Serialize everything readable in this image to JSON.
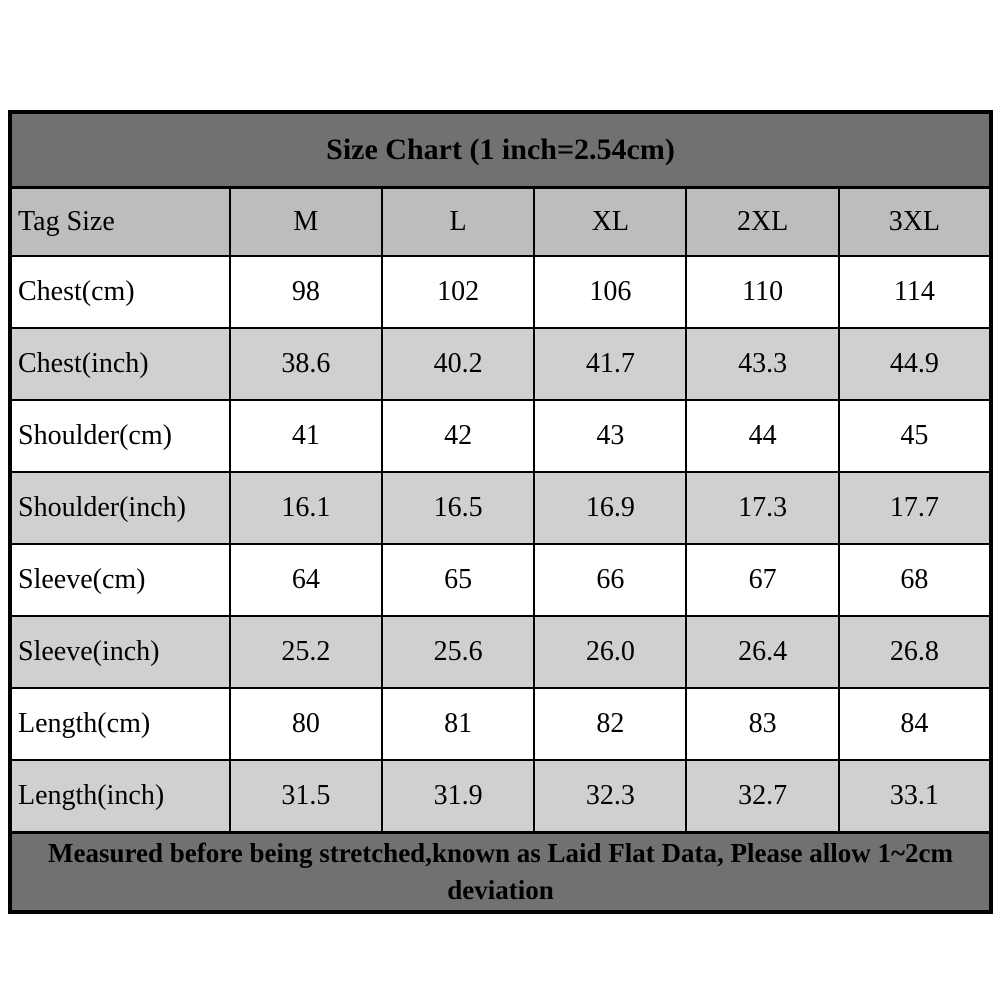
{
  "table": {
    "title": "Size Chart (1 inch=2.54cm)",
    "columns": [
      "Tag Size",
      "M",
      "L",
      "XL",
      "2XL",
      "3XL"
    ],
    "rows": [
      {
        "label": "Chest(cm)",
        "values": [
          "98",
          "102",
          "106",
          "110",
          "114"
        ]
      },
      {
        "label": "Chest(inch)",
        "values": [
          "38.6",
          "40.2",
          "41.7",
          "43.3",
          "44.9"
        ]
      },
      {
        "label": "Shoulder(cm)",
        "values": [
          "41",
          "42",
          "43",
          "44",
          "45"
        ]
      },
      {
        "label": "Shoulder(inch)",
        "values": [
          "16.1",
          "16.5",
          "16.9",
          "17.3",
          "17.7"
        ]
      },
      {
        "label": "Sleeve(cm)",
        "values": [
          "64",
          "65",
          "66",
          "67",
          "68"
        ]
      },
      {
        "label": "Sleeve(inch)",
        "values": [
          "25.2",
          "25.6",
          "26.0",
          "26.4",
          "26.8"
        ]
      },
      {
        "label": "Length(cm)",
        "values": [
          "80",
          "81",
          "82",
          "83",
          "84"
        ]
      },
      {
        "label": "Length(inch)",
        "values": [
          "31.5",
          "31.9",
          "32.3",
          "32.7",
          "33.1"
        ]
      }
    ],
    "footer": "Measured before being stretched,known as Laid Flat Data, Please allow 1~2cm deviation",
    "colors": {
      "title_bg": "#727070",
      "header_bg": "#bebcbc",
      "row_bg": "#ffffff",
      "row_alt_bg": "#d1d0d0",
      "footer_bg": "#727070",
      "border": "#000000",
      "text": "#000000"
    }
  },
  "chart_data": {
    "type": "table",
    "title": "Size Chart (1 inch=2.54cm)",
    "columns": [
      "Tag Size",
      "M",
      "L",
      "XL",
      "2XL",
      "3XL"
    ],
    "rows": [
      [
        "Chest(cm)",
        98,
        102,
        106,
        110,
        114
      ],
      [
        "Chest(inch)",
        38.6,
        40.2,
        41.7,
        43.3,
        44.9
      ],
      [
        "Shoulder(cm)",
        41,
        42,
        43,
        44,
        45
      ],
      [
        "Shoulder(inch)",
        16.1,
        16.5,
        16.9,
        17.3,
        17.7
      ],
      [
        "Sleeve(cm)",
        64,
        65,
        66,
        67,
        68
      ],
      [
        "Sleeve(inch)",
        25.2,
        25.6,
        26.0,
        26.4,
        26.8
      ],
      [
        "Length(cm)",
        80,
        81,
        82,
        83,
        84
      ],
      [
        "Length(inch)",
        31.5,
        31.9,
        32.3,
        32.7,
        33.1
      ]
    ],
    "note": "Measured before being stretched,known as Laid Flat Data, Please allow 1~2cm deviation",
    "layout": {
      "striped_rows": true,
      "title_position": "top",
      "note_position": "bottom"
    }
  }
}
